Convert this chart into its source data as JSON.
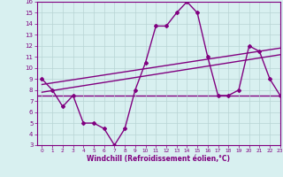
{
  "xlabel": "Windchill (Refroidissement éolien,°C)",
  "x": [
    0,
    1,
    2,
    3,
    4,
    5,
    6,
    7,
    8,
    9,
    10,
    11,
    12,
    13,
    14,
    15,
    16,
    17,
    18,
    19,
    20,
    21,
    22,
    23
  ],
  "y_data": [
    9,
    8,
    6.5,
    7.5,
    5,
    5,
    4.5,
    3,
    4.5,
    8,
    10.5,
    13.8,
    13.8,
    15,
    16,
    15,
    11,
    7.5,
    7.5,
    8,
    12,
    11.5,
    9,
    7.5
  ],
  "trend1_x": [
    0,
    23
  ],
  "trend1_y": [
    8.5,
    11.8
  ],
  "trend2_x": [
    0,
    23
  ],
  "trend2_y": [
    7.8,
    11.2
  ],
  "hline_y": 7.5,
  "ylim": [
    3,
    16
  ],
  "xlim": [
    -0.5,
    23
  ],
  "yticks": [
    3,
    4,
    5,
    6,
    7,
    8,
    9,
    10,
    11,
    12,
    13,
    14,
    15,
    16
  ],
  "xticks": [
    0,
    1,
    2,
    3,
    4,
    5,
    6,
    7,
    8,
    9,
    10,
    11,
    12,
    13,
    14,
    15,
    16,
    17,
    18,
    19,
    20,
    21,
    22,
    23
  ],
  "line_color": "#800080",
  "bg_color": "#d8f0f0",
  "grid_color": "#b8d4d4",
  "axis_color": "#800080",
  "tick_color": "#800080",
  "xlabel_color": "#800080",
  "marker": "D",
  "marker_size": 2.0,
  "line_width": 1.0
}
